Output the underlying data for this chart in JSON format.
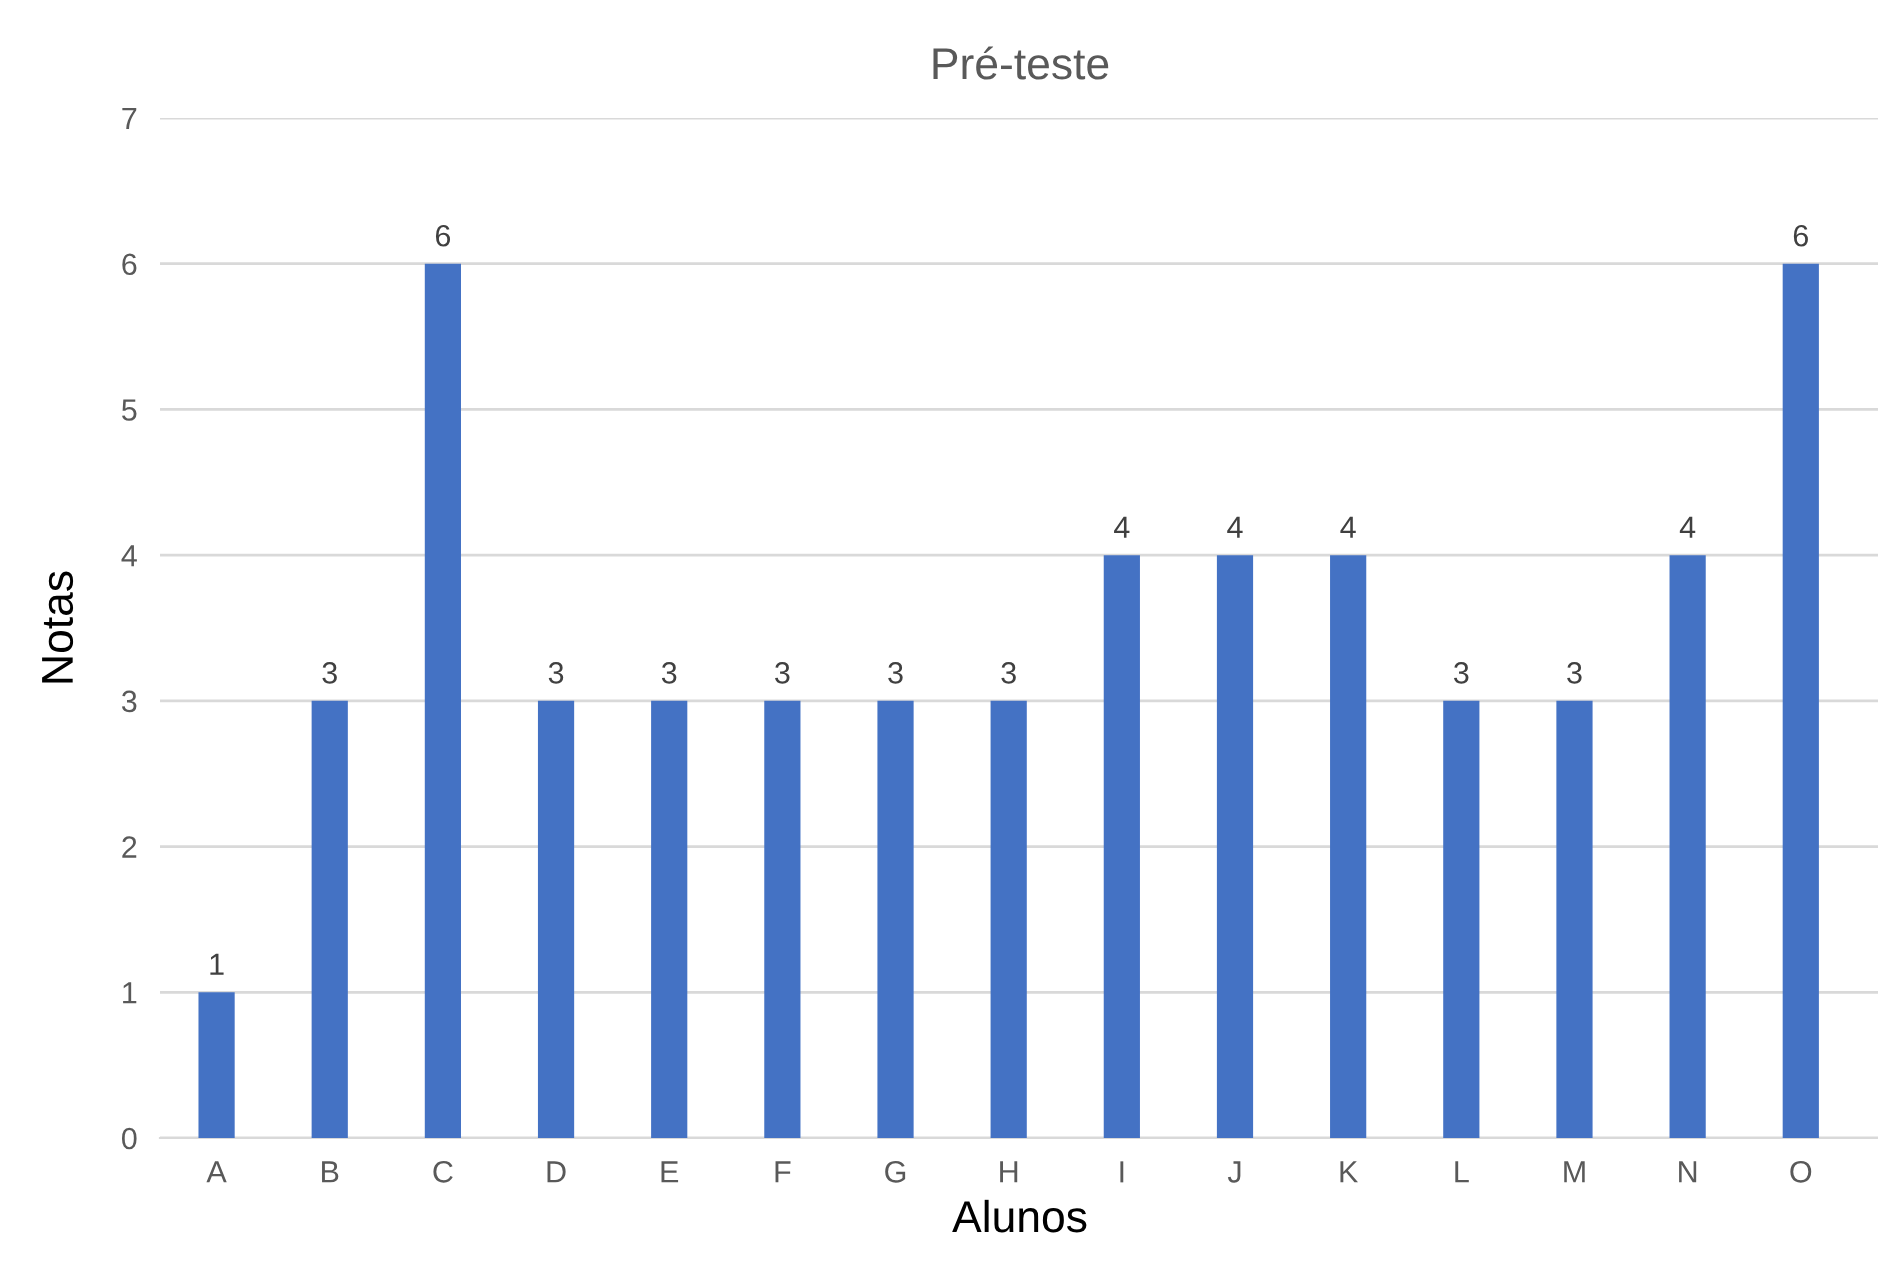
{
  "chart_data": {
    "type": "bar",
    "title": "Pré-teste",
    "xlabel": "Alunos",
    "ylabel": "Notas",
    "categories": [
      "A",
      "B",
      "C",
      "D",
      "E",
      "F",
      "G",
      "H",
      "I",
      "J",
      "K",
      "L",
      "M",
      "N",
      "O"
    ],
    "values": [
      1,
      3,
      6,
      3,
      3,
      3,
      3,
      3,
      4,
      4,
      4,
      3,
      3,
      4,
      6
    ],
    "color": "#4472c4",
    "ylim": [
      0,
      7
    ],
    "yticks": [
      0,
      1,
      2,
      3,
      4,
      5,
      6,
      7
    ],
    "grid": "y",
    "data_labels": true,
    "legend": false
  }
}
